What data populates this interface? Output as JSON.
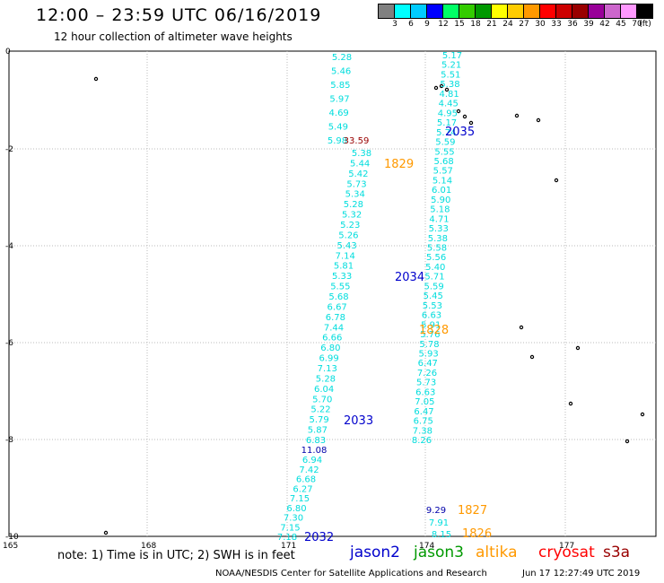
{
  "header": {
    "title": "12:00 – 23:59 UTC 06/16/2019",
    "subtitle": "12 hour collection of altimeter wave heights"
  },
  "legend": {
    "colors": [
      "#808080",
      "#00ffff",
      "#00ccff",
      "#0000ff",
      "#00ff66",
      "#33cc00",
      "#009900",
      "#ffff00",
      "#ffcc00",
      "#ff9900",
      "#ff0000",
      "#cc0000",
      "#990000",
      "#990099",
      "#cc66cc",
      "#ff99ff",
      "#000000"
    ],
    "labels": [
      "3",
      "6",
      "9",
      "12",
      "15",
      "18",
      "21",
      "24",
      "27",
      "30",
      "33",
      "36",
      "39",
      "42",
      "45",
      "70",
      "(ft)"
    ]
  },
  "axes": {
    "y_ticks": [
      "0",
      "-2",
      "-4",
      "-6",
      "-8",
      "-10"
    ],
    "x_ticks": [
      "165",
      "168",
      "171",
      "174",
      "177"
    ]
  },
  "tracks": [
    {
      "color": "#00dddd",
      "values": [
        "5.28",
        "5.46",
        "5.85",
        "5.97",
        "4.69",
        "5.49",
        "5.98"
      ]
    },
    {
      "color": "#990000",
      "values": [
        "33.59"
      ]
    },
    {
      "color": "#00dddd",
      "values": [
        "5.38",
        "5.44",
        "5.42",
        "5.73",
        "5.34",
        "5.28",
        "5.32",
        "5.23",
        "5.26",
        "5.43",
        "7.14",
        "5.81",
        "5.33",
        "5.55",
        "5.68",
        "6.67",
        "6.78",
        "7.44",
        "6.66",
        "6.80",
        "6.99",
        "7.13",
        "5.28",
        "6.04",
        "5.70",
        "5.22",
        "5.79",
        "5.87",
        "6.83"
      ]
    },
    {
      "color": "#0000aa",
      "values": [
        "11.08"
      ]
    },
    {
      "color": "#00dddd",
      "values": [
        "6.94",
        "7.42",
        "6.68",
        "6.27",
        "7.15",
        "6.80",
        "7.30",
        "7.15",
        "7.18"
      ]
    },
    {
      "color": "#00dddd",
      "values": [
        "5.17",
        "5.21",
        "5.51",
        "5.38",
        "4.81",
        "4.45",
        "4.95",
        "5.17",
        "5.74",
        "5.59",
        "5.55",
        "5.68",
        "5.57",
        "5.14",
        "6.01",
        "5.90",
        "5.18",
        "4.71",
        "5.33",
        "5.38",
        "5.58",
        "5.56",
        "5.40",
        "5.71",
        "5.59",
        "5.45",
        "5.53",
        "6.63",
        "5.91",
        "5.76",
        "5.78",
        "5.93",
        "6.47",
        "7.26",
        "5.73",
        "6.63",
        "7.05",
        "6.47",
        "6.75",
        "7.38",
        "8.26"
      ]
    },
    {
      "color": "#0000aa",
      "values": [
        "9.29"
      ]
    },
    {
      "color": "#00dddd",
      "values": [
        "7.91",
        "8.15"
      ]
    }
  ],
  "pass_labels": [
    {
      "text": "2035",
      "color": "#0000cc"
    },
    {
      "text": "1829",
      "color": "#ff9900"
    },
    {
      "text": "2034",
      "color": "#0000cc"
    },
    {
      "text": "1828",
      "color": "#ff9900"
    },
    {
      "text": "2033",
      "color": "#0000cc"
    },
    {
      "text": "1827",
      "color": "#ff9900"
    },
    {
      "text": "1826",
      "color": "#ff9900"
    },
    {
      "text": "2032",
      "color": "#0000cc"
    }
  ],
  "note": "note: 1) Time is in UTC; 2) SWH is in feet",
  "satellites": [
    {
      "name": "jason2",
      "color": "#0000cc"
    },
    {
      "name": "jason3",
      "color": "#009900"
    },
    {
      "name": "altika",
      "color": "#ff9900"
    },
    {
      "name": "cryosat",
      "color": "#ff0000"
    },
    {
      "name": "s3a",
      "color": "#990000"
    }
  ],
  "footer": {
    "credit": "NOAA/NESDIS Center for Satellite Applications and Research",
    "timestamp": "Jun 17 12:27:49 UTC 2019"
  }
}
